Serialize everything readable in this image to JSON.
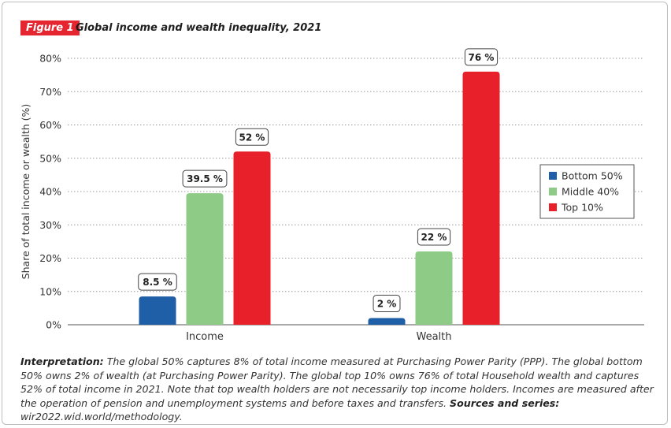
{
  "figure": {
    "badge": "Figure 1",
    "title": "Global income and wealth inequality, 2021"
  },
  "caption": {
    "lead": "Interpretation:",
    "body": " The global 50% captures 8% of total income measured at Purchasing Power Parity (PPP). The global bottom 50% owns 2% of wealth (at Purchasing Power Parity). The global top 10% owns 76% of total Household wealth and captures 52% of total income in 2021. Note that top wealth holders are not necessarily top income holders. Incomes are measured after the operation of pension and unemployment systems and before taxes and transfers. ",
    "sources_label": "Sources and series:",
    "sources": " wir2022.wid.world/methodology."
  },
  "chart_data": {
    "type": "bar",
    "title": "Global income and wealth inequality, 2021",
    "xlabel": "",
    "ylabel": "Share of total income or wealth (%)",
    "ylim": [
      0,
      80
    ],
    "yticks": [
      0,
      10,
      20,
      30,
      40,
      50,
      60,
      70,
      80
    ],
    "ytick_labels": [
      "0%",
      "10%",
      "20%",
      "30%",
      "40%",
      "50%",
      "60%",
      "70%",
      "80%"
    ],
    "grid": true,
    "legend_position": "right",
    "categories": [
      "Income",
      "Wealth"
    ],
    "series": [
      {
        "name": "Bottom 50%",
        "color": "#1f5fa8",
        "values": [
          8.5,
          2
        ],
        "labels": [
          "8.5 %",
          "2 %"
        ]
      },
      {
        "name": "Middle 40%",
        "color": "#8ecb87",
        "values": [
          39.5,
          22
        ],
        "labels": [
          "39.5 %",
          "22 %"
        ]
      },
      {
        "name": "Top 10%",
        "color": "#e8202a",
        "values": [
          52,
          76
        ],
        "labels": [
          "52 %",
          "76 %"
        ]
      }
    ]
  }
}
